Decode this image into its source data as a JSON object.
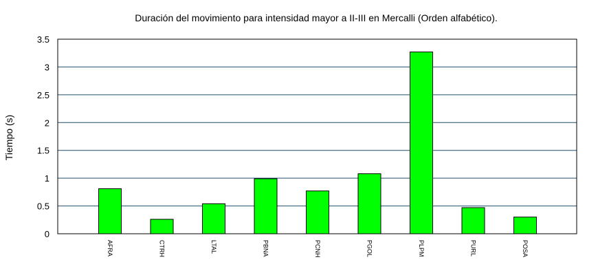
{
  "chart_data": {
    "type": "bar",
    "title": "Duración del movimiento para intensidad mayor a II-III en Mercalli (Orden alfabético).",
    "xlabel": "",
    "ylabel": "Tiempo (s)",
    "ylim": [
      0,
      3.5
    ],
    "yticks": [
      "0",
      "0.5",
      "1",
      "1.5",
      "2",
      "2.5",
      "3",
      "3.5"
    ],
    "categories": [
      "AFRA",
      "CTRH",
      "LTAL",
      "PBNA",
      "PCNH",
      "PGOL",
      "PLPM",
      "PURL",
      "POSA"
    ],
    "values": [
      0.81,
      0.26,
      0.54,
      0.99,
      0.77,
      1.08,
      3.27,
      0.47,
      0.3
    ],
    "bar_color": "#00ff00",
    "grid_color": "#1f4f6f",
    "grid": true
  }
}
